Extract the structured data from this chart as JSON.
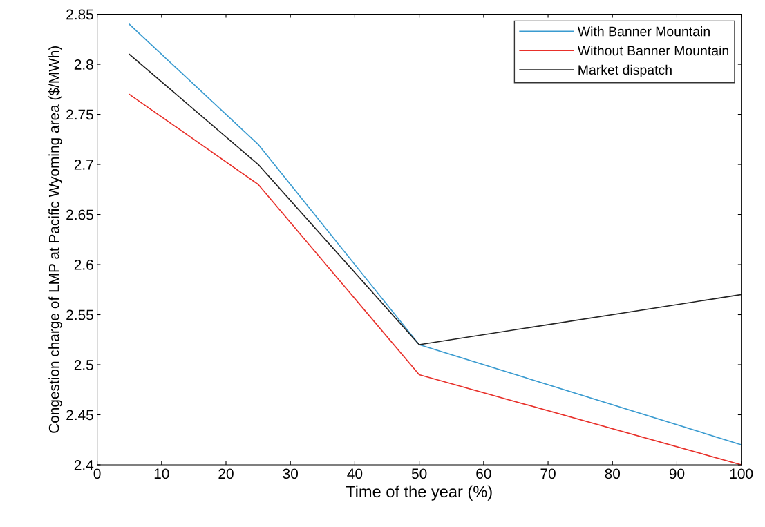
{
  "chart_data": {
    "type": "line",
    "xlabel": "Time of the year (%)",
    "ylabel": "Congestion charge of LMP at Pacific Wyoming area ($/MWh)",
    "x": [
      5,
      25,
      50,
      100
    ],
    "series": [
      {
        "name": "With Banner Mountain",
        "color": "#3a9bd0",
        "values": [
          2.84,
          2.72,
          2.52,
          2.42
        ]
      },
      {
        "name": "Without Banner Mountain",
        "color": "#e8302a",
        "values": [
          2.77,
          2.68,
          2.49,
          2.4
        ]
      },
      {
        "name": "Market dispatch",
        "color": "#222222",
        "values": [
          2.81,
          2.7,
          2.52,
          2.57
        ]
      }
    ],
    "xlim": [
      0,
      100
    ],
    "xticks": [
      0,
      10,
      20,
      30,
      40,
      50,
      60,
      70,
      80,
      90,
      100
    ],
    "ylim": [
      2.4,
      2.85
    ],
    "yticks": [
      2.4,
      2.45,
      2.5,
      2.55,
      2.6,
      2.65,
      2.7,
      2.75,
      2.8,
      2.85
    ],
    "grid": false,
    "legend": "top right",
    "marker": "none",
    "line_style": "solid"
  }
}
